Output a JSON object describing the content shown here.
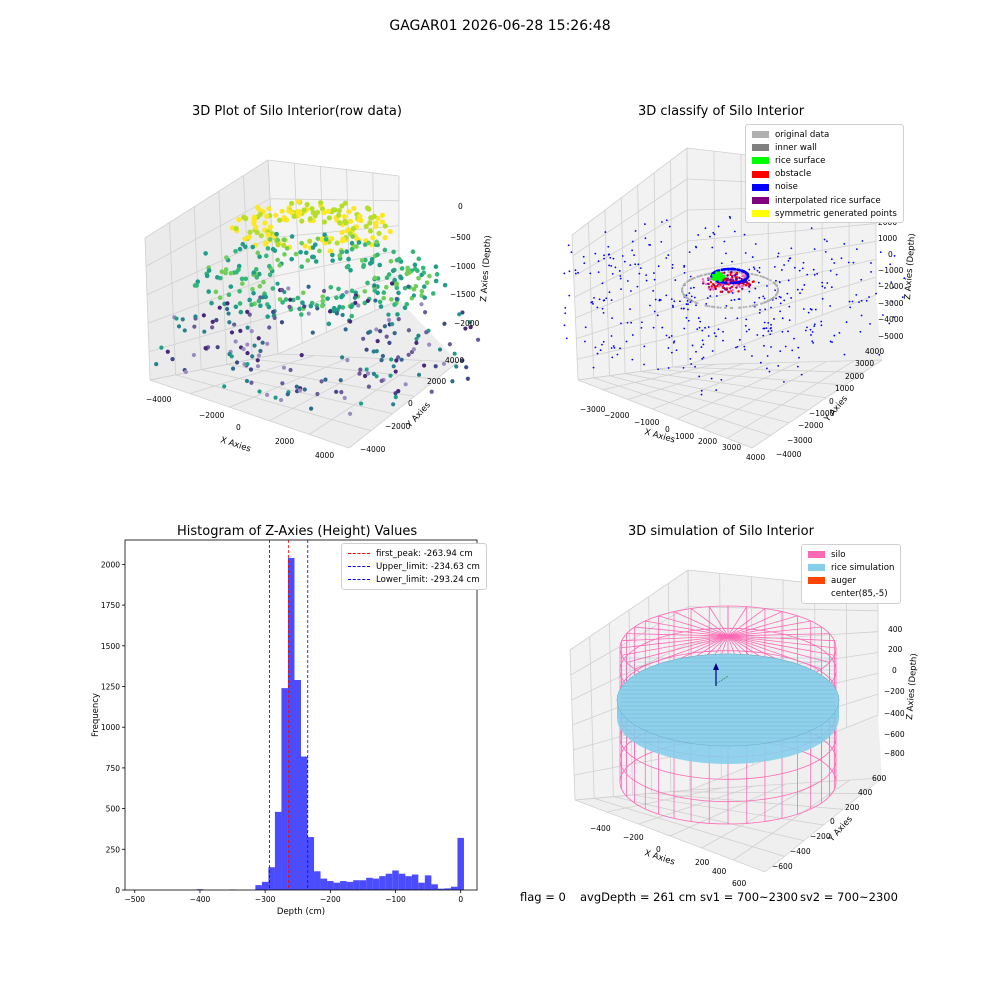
{
  "figure": {
    "suptitle": "GAGAR01 2026-06-28 15:26:48",
    "footer": {
      "flag": "flag = 0",
      "avg_depth": "avgDepth = 261 cm",
      "sv1": "sv1 = 700~2300",
      "sv2": "sv2 = 700~2300"
    }
  },
  "chart_data": [
    {
      "type": "scatter",
      "projection": "3d",
      "title": "3D Plot of Silo Interior(row data)",
      "xlabel": "X Axies",
      "ylabel": "Y Axies",
      "zlabel": "Z Axies (Depth)",
      "x_ticks": [
        "−4000",
        "−2000",
        "0",
        "2000",
        "4000"
      ],
      "y_ticks": [
        "−4000",
        "−2000",
        "0",
        "2000",
        "4000"
      ],
      "z_ticks": [
        "0",
        "−500",
        "−1000",
        "−1500",
        "−2000"
      ],
      "colormap": "viridis (by depth)",
      "description_points": "points concentrated in rings near depth -1000 to -500 (yellow/green) with scattered points down to -2000 (purple)"
    },
    {
      "type": "scatter",
      "projection": "3d",
      "title": "3D classify of Silo Interior",
      "xlabel": "X Axies",
      "ylabel": "Y Axies",
      "zlabel": "Z Axies (Depth)",
      "x_ticks": [
        "−3000",
        "−2000",
        "−1000",
        "0",
        "1000",
        "2000",
        "3000",
        "4000"
      ],
      "y_ticks": [
        "−4000",
        "−3000",
        "−2000",
        "−1000",
        "0",
        "1000",
        "2000",
        "3000",
        "4000"
      ],
      "z_ticks": [
        "2000",
        "1000",
        "0",
        "−1000",
        "−2000",
        "−3000",
        "−4000",
        "−5000"
      ],
      "z_extra_top": "000",
      "legend": {
        "placement": "top-right",
        "entries": [
          {
            "label": "original data",
            "color": "#b0b0b0"
          },
          {
            "label": "inner wall",
            "color": "#808080"
          },
          {
            "label": "rice surface",
            "color": "#00ff00"
          },
          {
            "label": "obstacle",
            "color": "#ff0000"
          },
          {
            "label": "noise",
            "color": "#0000ff"
          },
          {
            "label": "interpolated rice surface",
            "color": "#800080"
          },
          {
            "label": "symmetric generated points",
            "color": "#ffff00"
          }
        ]
      }
    },
    {
      "type": "bar",
      "title": "Histogram of Z-Axies (Height) Values",
      "xlabel": "Depth (cm)",
      "ylabel": "Frequency",
      "xlim": [
        -515,
        25
      ],
      "ylim": [
        0,
        2150
      ],
      "x_ticks": [
        -500,
        -400,
        -300,
        -200,
        -100,
        0
      ],
      "x_tick_labels": [
        "−500",
        "−400",
        "−300",
        "−200",
        "−100",
        "0"
      ],
      "y_ticks": [
        0,
        250,
        500,
        750,
        1000,
        1250,
        1500,
        1750,
        2000
      ],
      "bar_color": "#0000ff",
      "bar_alpha": 0.7,
      "bin_width": 10,
      "bins": [
        {
          "x": -400,
          "value": 5
        },
        {
          "x": -350,
          "value": 3
        },
        {
          "x": -310,
          "value": 30
        },
        {
          "x": -300,
          "value": 50
        },
        {
          "x": -290,
          "value": 140
        },
        {
          "x": -280,
          "value": 480
        },
        {
          "x": -270,
          "value": 1240
        },
        {
          "x": -260,
          "value": 2040
        },
        {
          "x": -250,
          "value": 1290
        },
        {
          "x": -240,
          "value": 820
        },
        {
          "x": -230,
          "value": 325
        },
        {
          "x": -220,
          "value": 115
        },
        {
          "x": -210,
          "value": 70
        },
        {
          "x": -200,
          "value": 55
        },
        {
          "x": -190,
          "value": 45
        },
        {
          "x": -180,
          "value": 55
        },
        {
          "x": -170,
          "value": 50
        },
        {
          "x": -160,
          "value": 60
        },
        {
          "x": -150,
          "value": 60
        },
        {
          "x": -140,
          "value": 75
        },
        {
          "x": -130,
          "value": 70
        },
        {
          "x": -120,
          "value": 85
        },
        {
          "x": -110,
          "value": 100
        },
        {
          "x": -100,
          "value": 120
        },
        {
          "x": -90,
          "value": 100
        },
        {
          "x": -80,
          "value": 85
        },
        {
          "x": -70,
          "value": 95
        },
        {
          "x": -60,
          "value": 45
        },
        {
          "x": -50,
          "value": 90
        },
        {
          "x": -40,
          "value": 35
        },
        {
          "x": -30,
          "value": 8
        },
        {
          "x": -20,
          "value": 10
        },
        {
          "x": -10,
          "value": 20
        },
        {
          "x": 0,
          "value": 320
        }
      ],
      "vlines": [
        {
          "label": "first_peak: -263.94 cm",
          "x": -263.94,
          "color": "#ff0000"
        },
        {
          "label": "Upper_limit: -234.63 cm",
          "x": -234.63,
          "color": "#0000ff"
        },
        {
          "label": "Lower_limit: -293.24 cm",
          "x": -293.24,
          "color": "#0000ff"
        }
      ],
      "legend_placement": "top-right"
    },
    {
      "type": "surface",
      "projection": "3d",
      "title": "3D simulation of Silo Interior",
      "xlabel": "X Axies",
      "ylabel": "Y Axies",
      "zlabel": "Z Axies (Depth)",
      "x_ticks": [
        "−400",
        "−200",
        "0",
        "200",
        "400",
        "600"
      ],
      "y_ticks": [
        "−600",
        "−400",
        "−200",
        "0",
        "200",
        "400",
        "600"
      ],
      "z_ticks": [
        "400",
        "200",
        "0",
        "−200",
        "−400",
        "−600",
        "−800"
      ],
      "legend": {
        "placement": "top-right",
        "entries": [
          {
            "label": "silo",
            "color": "#ff69b4"
          },
          {
            "label": "rice simulation",
            "color": "#87ceeb"
          },
          {
            "label": "auger",
            "color": "#ff4500"
          },
          {
            "label": "center(85,-5)",
            "color": ""
          }
        ]
      }
    }
  ]
}
